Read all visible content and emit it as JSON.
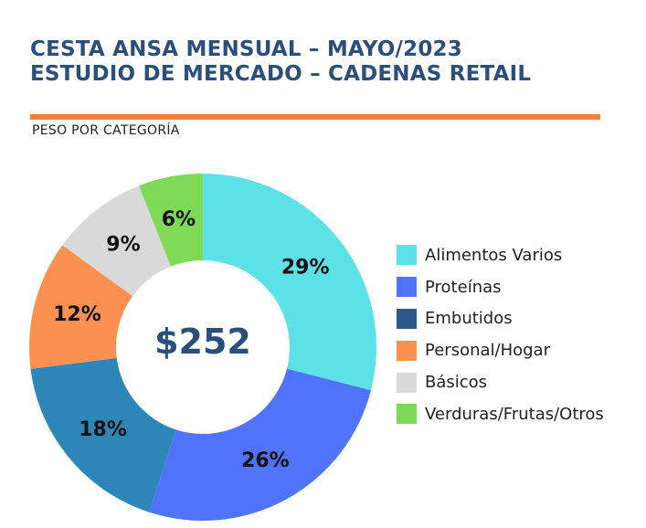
{
  "header": {
    "title_line1": "CESTA ANSA MENSUAL – MAYO/2023",
    "title_line2": "ESTUDIO DE MERCADO – CADENAS RETAIL",
    "subtitle": "PESO POR CATEGORÍA"
  },
  "colors": {
    "title": "#2b4f7c",
    "rule": "#f07f3c"
  },
  "chart_data": {
    "type": "pie",
    "variant": "donut",
    "title": "PESO POR CATEGORÍA",
    "center_label": "$252",
    "legend_position": "right",
    "unit": "%",
    "categories": [
      "Alimentos Varios",
      "Proteínas",
      "Embutidos",
      "Personal/Hogar",
      "Básicos",
      "Verduras/Frutas/Otros"
    ],
    "values": [
      29,
      26,
      18,
      12,
      9,
      6
    ],
    "labels": [
      "29%",
      "26%",
      "18%",
      "12%",
      "9%",
      "6%"
    ],
    "legend_colors": [
      "#5ce1e6",
      "#4f74fb",
      "#2b5a8a",
      "#fb9150",
      "#d9d9d9",
      "#7ed957"
    ],
    "slice_colors": [
      "#5ce1e6",
      "#4f74fb",
      "#2e86b8",
      "#fb9150",
      "#d9d9d9",
      "#7ed957"
    ]
  }
}
